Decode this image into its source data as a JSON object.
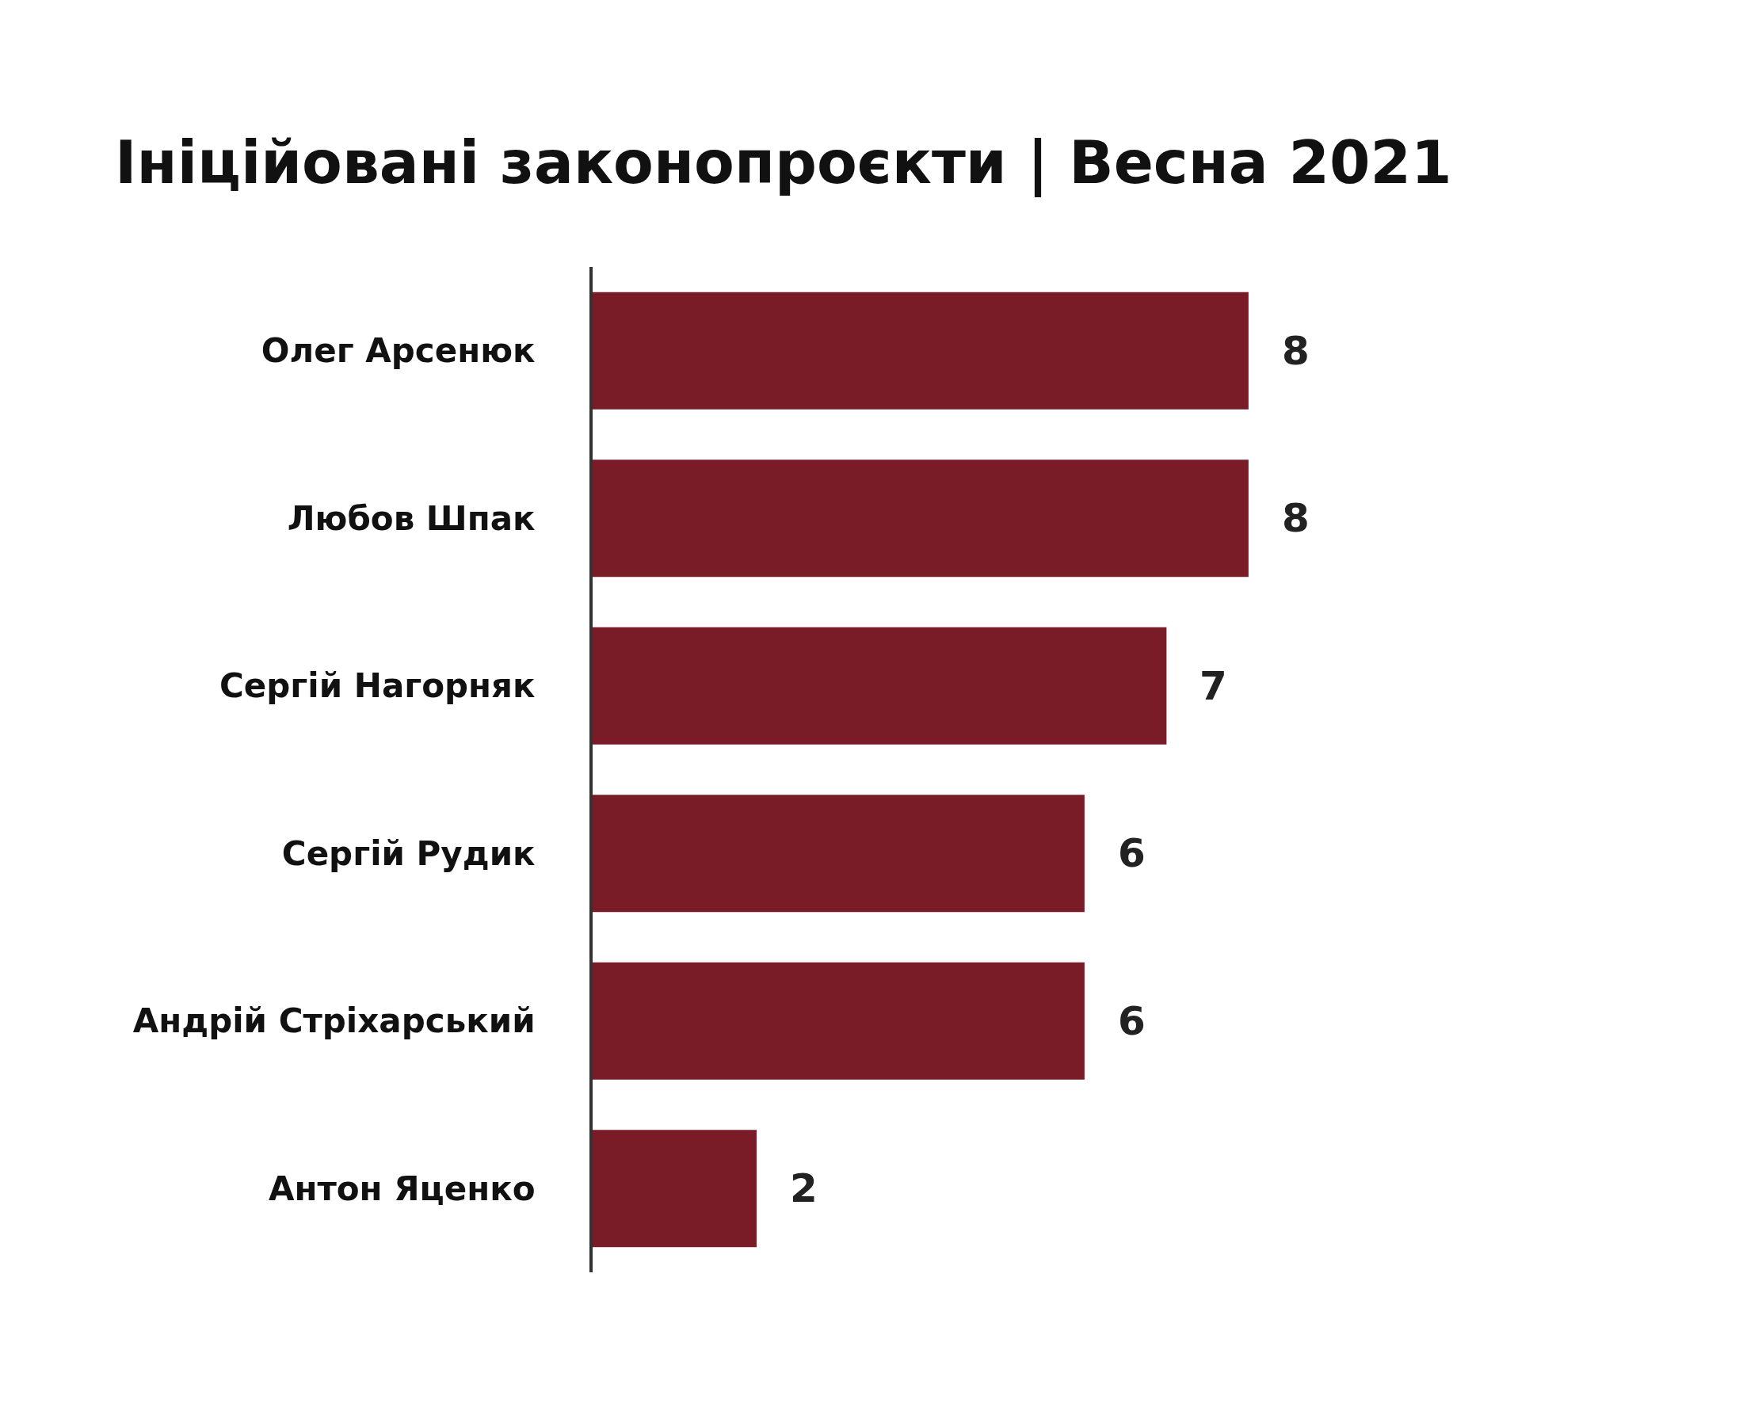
{
  "chart_data": {
    "type": "bar",
    "orientation": "horizontal",
    "title": "Ініційовані законопроєкти | Весна 2021",
    "categories": [
      "Олег Арсенюк",
      "Любов Шпак",
      "Сергій Нагорняк",
      "Сергій Рудик",
      "Андрій Стріхарський",
      "Антон Яценко"
    ],
    "values": [
      8,
      8,
      7,
      6,
      6,
      2
    ],
    "color": "#7a1c28",
    "data_labels": true,
    "tick_labels": "y",
    "legend": false
  }
}
